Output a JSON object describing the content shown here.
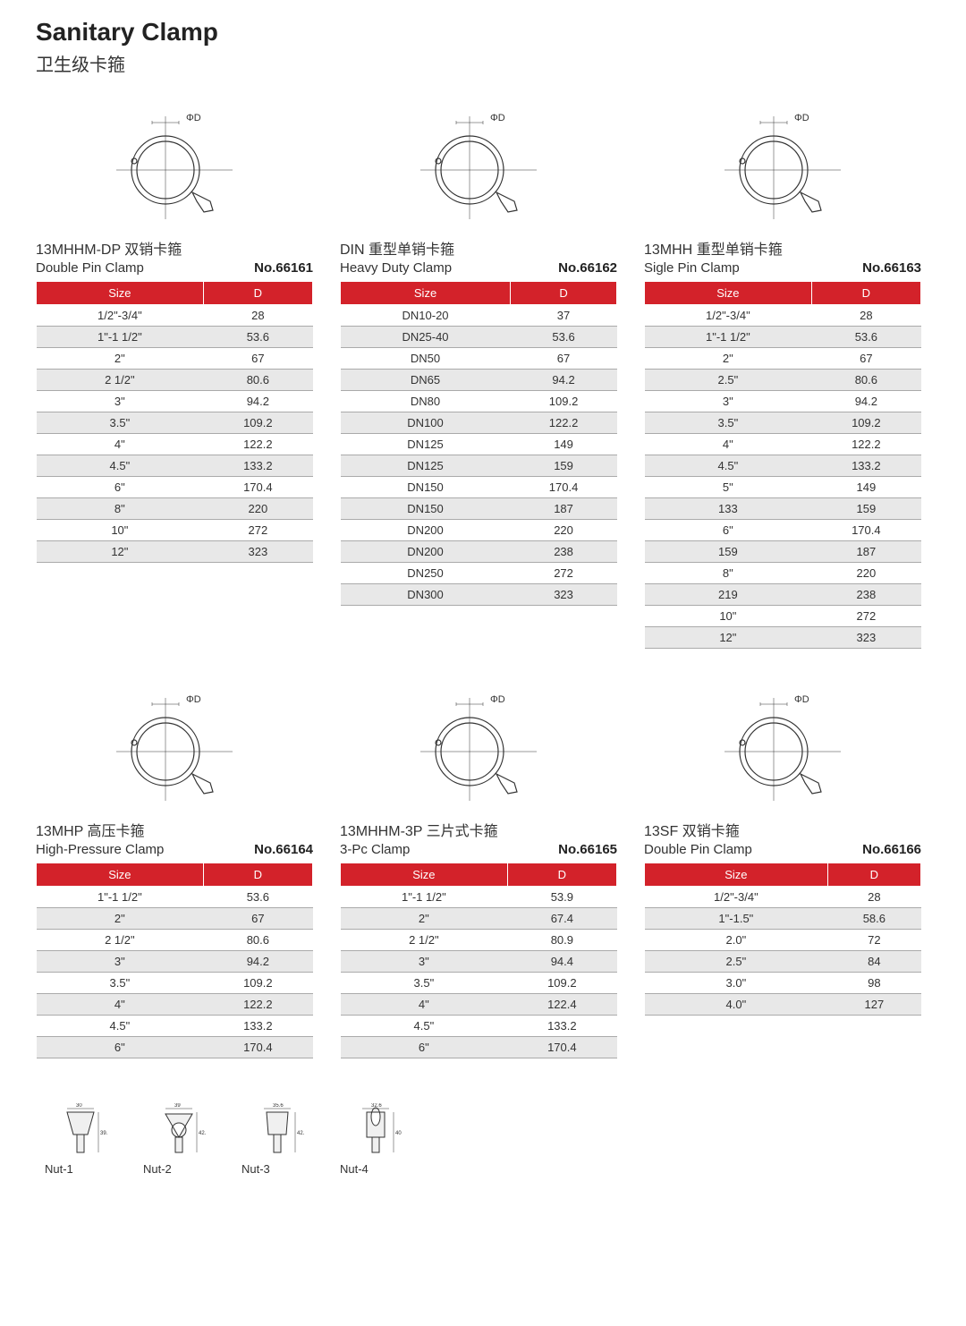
{
  "page": {
    "title_en": "Sanitary Clamp",
    "title_cn": "卫生级卡箍"
  },
  "header_cols": [
    "Size",
    "D"
  ],
  "diagram_label": "ΦD",
  "colors": {
    "header_bg": "#d3222a",
    "header_fg": "#ffffff",
    "row_alt": "#e8e8e8",
    "border": "#aaaaaa",
    "text": "#333333"
  },
  "products": [
    {
      "code": "13MHHM-DP",
      "name_cn": "双销卡箍",
      "name_en": "Double Pin Clamp",
      "no": "No.66161",
      "rows": [
        [
          "1/2\"-3/4\"",
          "28"
        ],
        [
          "1\"-1 1/2\"",
          "53.6"
        ],
        [
          "2\"",
          "67"
        ],
        [
          "2 1/2\"",
          "80.6"
        ],
        [
          "3\"",
          "94.2"
        ],
        [
          "3.5\"",
          "109.2"
        ],
        [
          "4\"",
          "122.2"
        ],
        [
          "4.5\"",
          "133.2"
        ],
        [
          "6\"",
          "170.4"
        ],
        [
          "8\"",
          "220"
        ],
        [
          "10\"",
          "272"
        ],
        [
          "12\"",
          "323"
        ]
      ]
    },
    {
      "code": "DIN",
      "name_cn": "重型单销卡箍",
      "name_en": "Heavy Duty Clamp",
      "no": "No.66162",
      "rows": [
        [
          "DN10-20",
          "37"
        ],
        [
          "DN25-40",
          "53.6"
        ],
        [
          "DN50",
          "67"
        ],
        [
          "DN65",
          "94.2"
        ],
        [
          "DN80",
          "109.2"
        ],
        [
          "DN100",
          "122.2"
        ],
        [
          "DN125",
          "149"
        ],
        [
          "DN125",
          "159"
        ],
        [
          "DN150",
          "170.4"
        ],
        [
          "DN150",
          "187"
        ],
        [
          "DN200",
          "220"
        ],
        [
          "DN200",
          "238"
        ],
        [
          "DN250",
          "272"
        ],
        [
          "DN300",
          "323"
        ]
      ]
    },
    {
      "code": "13MHH",
      "name_cn": "重型单销卡箍",
      "name_en": "Sigle Pin Clamp",
      "no": "No.66163",
      "rows": [
        [
          "1/2\"-3/4\"",
          "28"
        ],
        [
          "1\"-1 1/2\"",
          "53.6"
        ],
        [
          "2\"",
          "67"
        ],
        [
          "2.5\"",
          "80.6"
        ],
        [
          "3\"",
          "94.2"
        ],
        [
          "3.5\"",
          "109.2"
        ],
        [
          "4\"",
          "122.2"
        ],
        [
          "4.5\"",
          "133.2"
        ],
        [
          "5\"",
          "149"
        ],
        [
          "133",
          "159"
        ],
        [
          "6\"",
          "170.4"
        ],
        [
          "159",
          "187"
        ],
        [
          "8\"",
          "220"
        ],
        [
          "219",
          "238"
        ],
        [
          "10\"",
          "272"
        ],
        [
          "12\"",
          "323"
        ]
      ]
    },
    {
      "code": "13MHP",
      "name_cn": "高压卡箍",
      "name_en": "High-Pressure Clamp",
      "no": "No.66164",
      "rows": [
        [
          "1\"-1 1/2\"",
          "53.6"
        ],
        [
          "2\"",
          "67"
        ],
        [
          "2 1/2\"",
          "80.6"
        ],
        [
          "3\"",
          "94.2"
        ],
        [
          "3.5\"",
          "109.2"
        ],
        [
          "4\"",
          "122.2"
        ],
        [
          "4.5\"",
          "133.2"
        ],
        [
          "6\"",
          "170.4"
        ]
      ]
    },
    {
      "code": "13MHHM-3P",
      "name_cn": "三片式卡箍",
      "name_en": "3-Pc Clamp",
      "no": "No.66165",
      "rows": [
        [
          "1\"-1 1/2\"",
          "53.9"
        ],
        [
          "2\"",
          "67.4"
        ],
        [
          "2 1/2\"",
          "80.9"
        ],
        [
          "3\"",
          "94.4"
        ],
        [
          "3.5\"",
          "109.2"
        ],
        [
          "4\"",
          "122.4"
        ],
        [
          "4.5\"",
          "133.2"
        ],
        [
          "6\"",
          "170.4"
        ]
      ]
    },
    {
      "code": "13SF",
      "name_cn": "双销卡箍",
      "name_en": "Double Pin Clamp",
      "no": "No.66166",
      "rows": [
        [
          "1/2\"-3/4\"",
          "28"
        ],
        [
          "1\"-1.5\"",
          "58.6"
        ],
        [
          "2.0\"",
          "72"
        ],
        [
          "2.5\"",
          "84"
        ],
        [
          "3.0\"",
          "98"
        ],
        [
          "4.0\"",
          "127"
        ]
      ]
    }
  ],
  "nuts": [
    {
      "label": "Nut-1",
      "w": "30",
      "h": "39.2"
    },
    {
      "label": "Nut-2",
      "w": "39",
      "h": "42.2"
    },
    {
      "label": "Nut-3",
      "w": "35.6",
      "h": "42.5"
    },
    {
      "label": "Nut-4",
      "w": "32.6",
      "h": "40"
    }
  ]
}
